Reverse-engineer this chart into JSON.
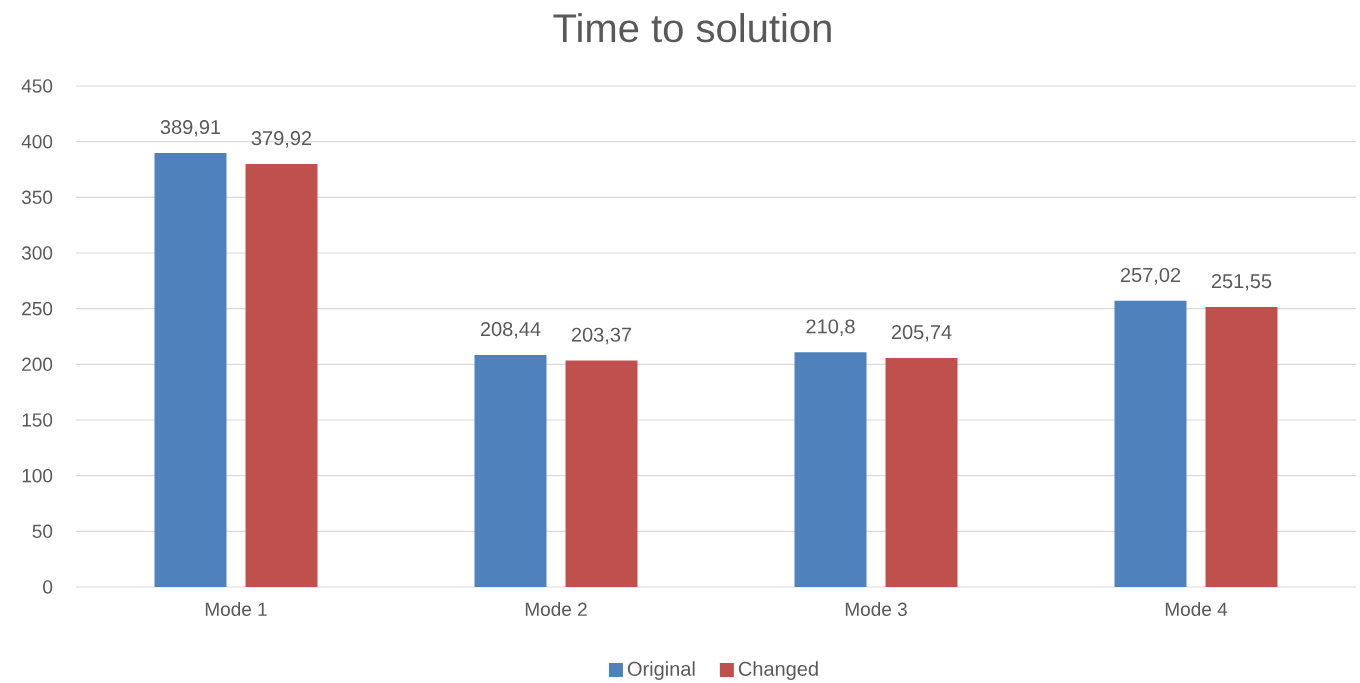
{
  "chart_data": {
    "type": "bar",
    "title": "Time to solution",
    "categories": [
      "Mode 1",
      "Mode 2",
      "Mode 3",
      "Mode 4"
    ],
    "series": [
      {
        "name": "Original",
        "color": "#4f81bd",
        "values": [
          389.91,
          208.44,
          210.8,
          257.02
        ],
        "value_labels": [
          "389,91",
          "208,44",
          "210,8",
          "257,02"
        ]
      },
      {
        "name": "Changed",
        "color": "#c0504d",
        "values": [
          379.92,
          203.37,
          205.74,
          251.55
        ],
        "value_labels": [
          "379,92",
          "203,37",
          "205,74",
          "251,55"
        ]
      }
    ],
    "ylim": [
      0,
      450
    ],
    "yticks": [
      0,
      50,
      100,
      150,
      200,
      250,
      300,
      350,
      400,
      450
    ],
    "grid": "y",
    "legend": "bottom"
  }
}
